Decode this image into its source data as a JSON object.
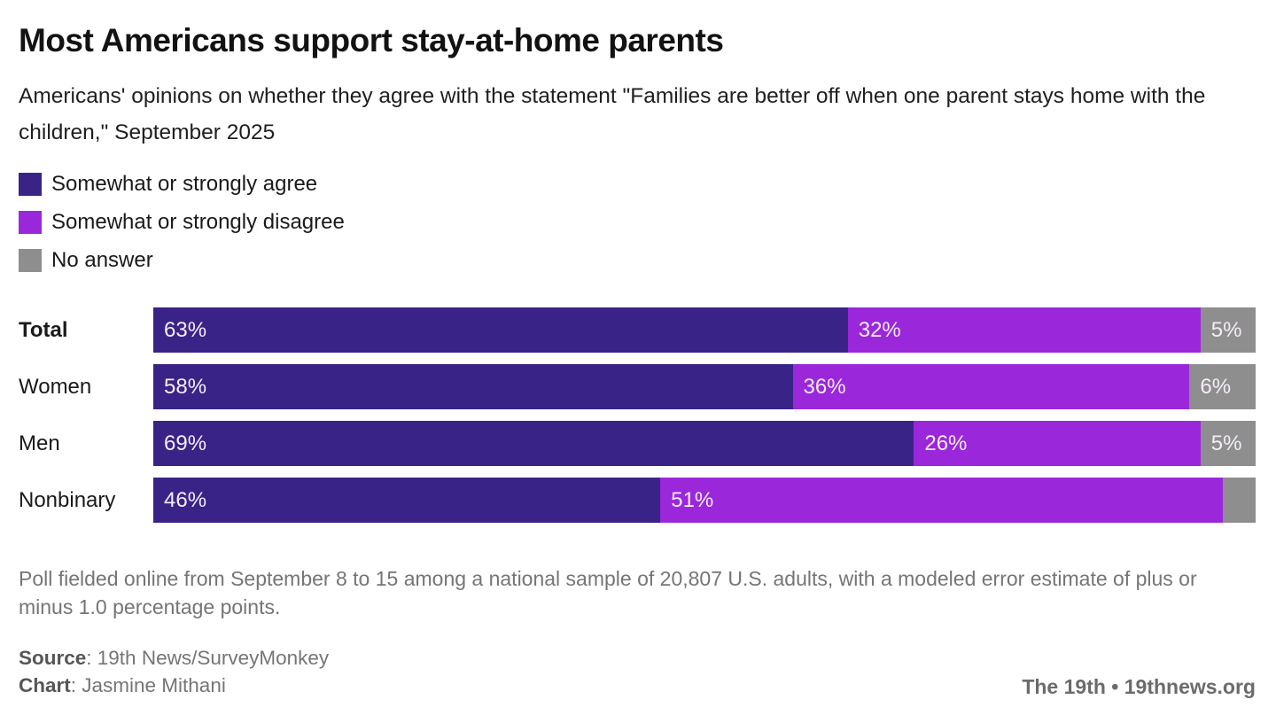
{
  "header": {
    "title": "Most Americans support stay-at-home parents",
    "subtitle": "Americans' opinions on whether they agree with the statement \"Families are better off when one parent stays home with the children,\" September 2025"
  },
  "chart_data": {
    "type": "bar",
    "orientation": "horizontal",
    "stacked": true,
    "unit": "percent",
    "xlim": [
      0,
      100
    ],
    "grid": false,
    "legend_position": "top-left",
    "categories": [
      "Total",
      "Women",
      "Men",
      "Nonbinary"
    ],
    "series": [
      {
        "name": "Somewhat or strongly agree",
        "color": "#3A2387",
        "values": [
          63,
          58,
          69,
          46
        ],
        "labels": [
          "63%",
          "58%",
          "69%",
          "46%"
        ]
      },
      {
        "name": "Somewhat or strongly disagree",
        "color": "#9B27DB",
        "values": [
          32,
          36,
          26,
          51
        ],
        "labels": [
          "32%",
          "36%",
          "26%",
          "51%"
        ]
      },
      {
        "name": "No answer",
        "color": "#8E8E8E",
        "values": [
          5,
          6,
          5,
          3
        ],
        "labels": [
          "5%",
          "6%",
          "5%",
          ""
        ]
      }
    ]
  },
  "footer": {
    "note": "Poll fielded online from September 8 to 15 among a national sample of 20,807 U.S. adults, with a modeled error estimate of plus or minus 1.0 percentage points.",
    "source_label": "Source",
    "source_value": ": 19th News/SurveyMonkey",
    "chart_label": "Chart",
    "chart_value": ": Jasmine Mithani",
    "branding": "The 19th • 19thnews.org"
  },
  "colors": {
    "agree": "#3A2387",
    "disagree": "#9B27DB",
    "no_answer": "#8E8E8E",
    "bar_label_text": "#F4EDF7"
  }
}
